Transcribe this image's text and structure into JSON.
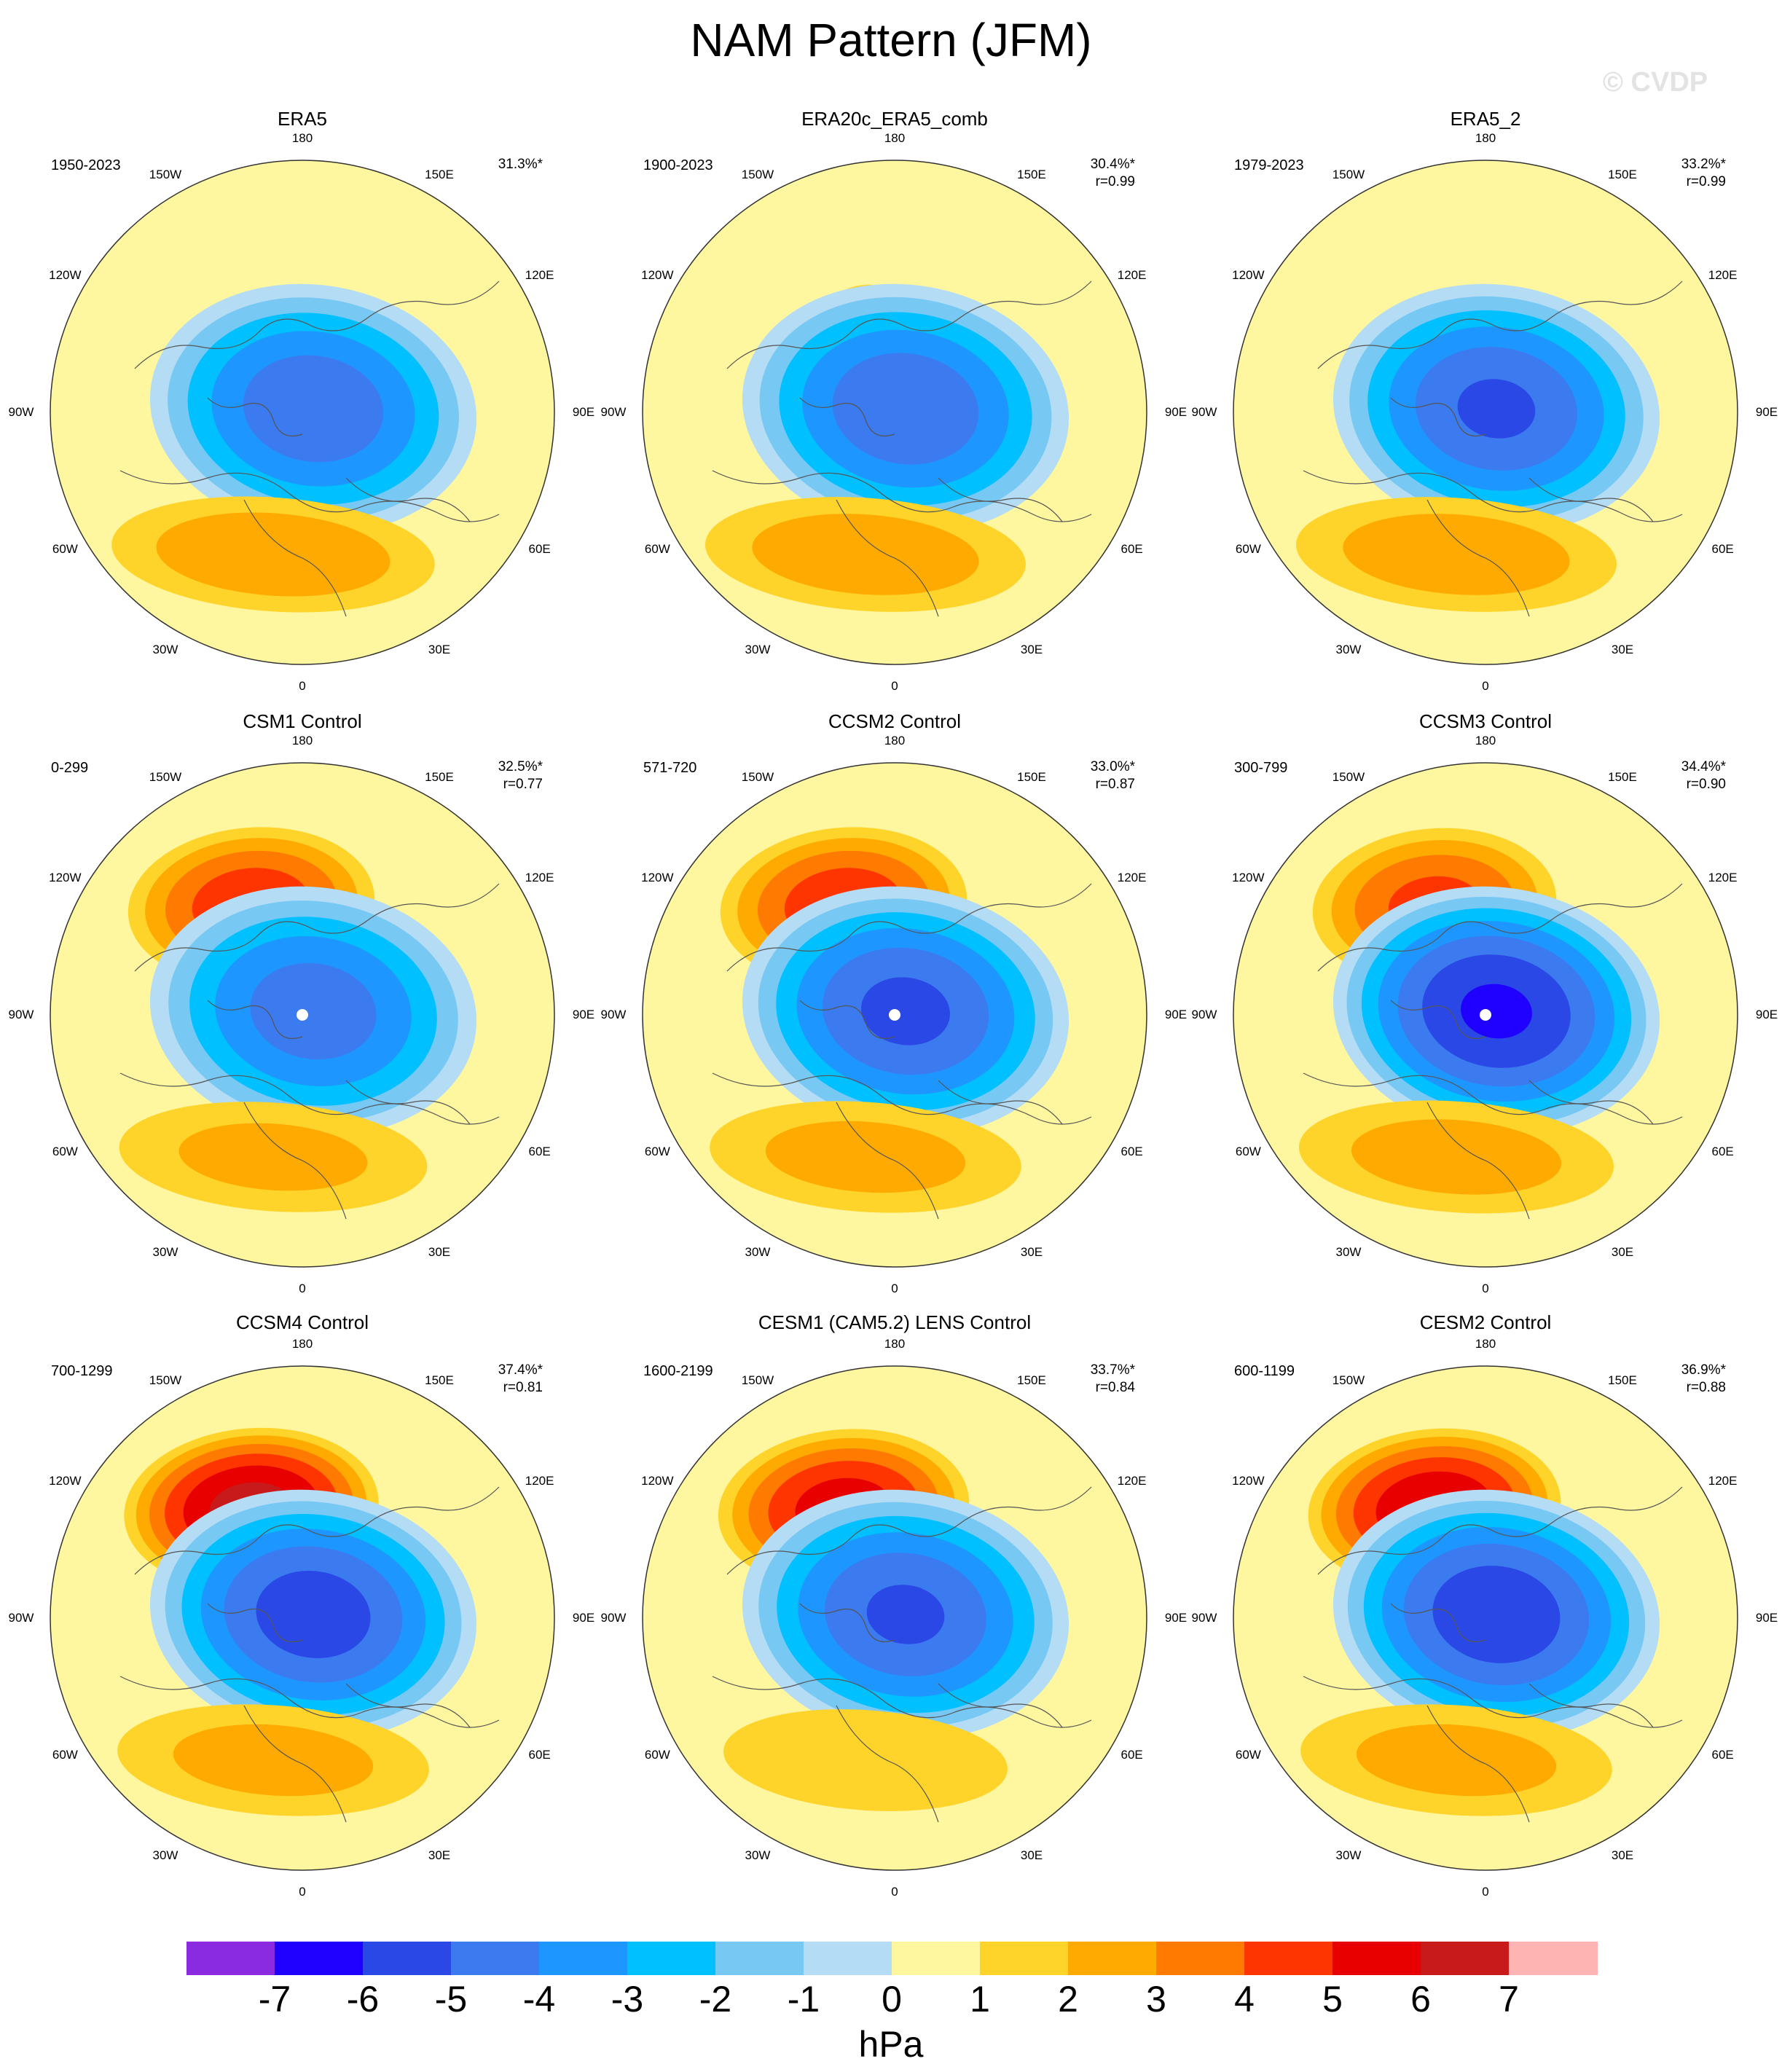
{
  "title": "NAM Pattern (JFM)",
  "watermark": "© CVDP",
  "panels": [
    {
      "name": "ERA5",
      "period": "1950-2023",
      "pct": "31.3%*",
      "r": "",
      "pattern": {
        "pos_amp": 0.8,
        "neg_amp": 4.6,
        "atl_amp": 2.8,
        "pole_dot": false
      }
    },
    {
      "name": "ERA20c_ERA5_comb",
      "period": "1900-2023",
      "pct": "30.4%*",
      "r": "r=0.99",
      "pattern": {
        "pos_amp": 1.5,
        "neg_amp": 4.7,
        "atl_amp": 2.7,
        "pole_dot": false
      }
    },
    {
      "name": "ERA5_2",
      "period": "1979-2023",
      "pct": "33.2%*",
      "r": "r=0.99",
      "pattern": {
        "pos_amp": 1.3,
        "neg_amp": 5.0,
        "atl_amp": 2.7,
        "pole_dot": false
      }
    },
    {
      "name": "CSM1 Control",
      "period": "0-299",
      "pct": "32.5%*",
      "r": "r=0.77",
      "pattern": {
        "pos_amp": 4.6,
        "neg_amp": 4.4,
        "atl_amp": 2.3,
        "pole_dot": true
      }
    },
    {
      "name": "CCSM2 Control",
      "period": "571-720",
      "pct": "33.0%*",
      "r": "r=0.87",
      "pattern": {
        "pos_amp": 4.6,
        "neg_amp": 5.1,
        "atl_amp": 2.4,
        "pole_dot": true
      }
    },
    {
      "name": "CCSM3 Control",
      "period": "300-799",
      "pct": "34.4%*",
      "r": "r=0.90",
      "pattern": {
        "pos_amp": 4.2,
        "neg_amp": 6.0,
        "atl_amp": 2.5,
        "pole_dot": true
      }
    },
    {
      "name": "CCSM4 Control",
      "period": "700-1299",
      "pct": "37.4%*",
      "r": "r=0.81",
      "pattern": {
        "pos_amp": 6.3,
        "neg_amp": 5.4,
        "atl_amp": 2.4,
        "pole_dot": false
      }
    },
    {
      "name": "CESM1 (CAM5.2) LENS Control",
      "period": "1600-2199",
      "pct": "33.7%*",
      "r": "r=0.84",
      "pattern": {
        "pos_amp": 5.4,
        "neg_amp": 5.0,
        "atl_amp": 1.8,
        "pole_dot": false
      }
    },
    {
      "name": "CESM2 Control",
      "period": "600-1199",
      "pct": "36.9%*",
      "r": "r=0.88",
      "pattern": {
        "pos_amp": 5.8,
        "neg_amp": 5.6,
        "atl_amp": 2.4,
        "pole_dot": false
      }
    }
  ],
  "longitude_labels": [
    "180",
    "150E",
    "120E",
    "90E",
    "60E",
    "30E",
    "0",
    "30W",
    "60W",
    "90W",
    "120W",
    "150W"
  ],
  "colorbar": {
    "units": "hPa",
    "levels": [
      "-7",
      "-6",
      "-5",
      "-4",
      "-3",
      "-2",
      "-1",
      "0",
      "1",
      "2",
      "3",
      "4",
      "5",
      "6",
      "7"
    ],
    "colors": [
      "#8a2be2",
      "#1f00ff",
      "#2a48e6",
      "#3c7af0",
      "#1e96ff",
      "#00c0ff",
      "#78c8f4",
      "#b4dcf4",
      "#fff6a0",
      "#ffd42a",
      "#ffaa00",
      "#ff7a00",
      "#ff3500",
      "#e80000",
      "#c81a1a",
      "#ffb4b4"
    ]
  }
}
